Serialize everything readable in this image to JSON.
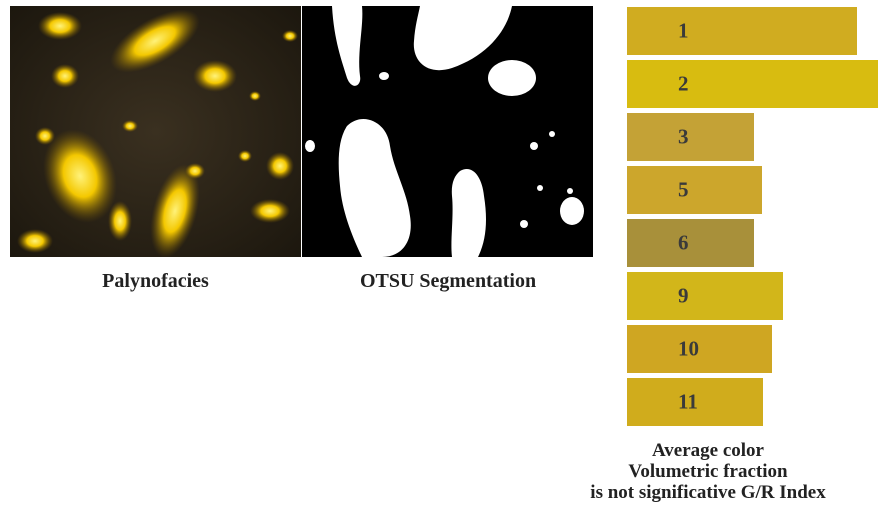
{
  "panels": {
    "palynofacies_caption": "Palynofacies",
    "otsu_caption": "OTSU Segmentation"
  },
  "color_bars": [
    {
      "label": "1",
      "color": "#d0ac20",
      "fraction": 0.917
    },
    {
      "label": "2",
      "color": "#d8bc10",
      "fraction": 1.0
    },
    {
      "label": "3",
      "color": "#c4a236",
      "fraction": 0.51
    },
    {
      "label": "5",
      "color": "#cca62c",
      "fraction": 0.54
    },
    {
      "label": "6",
      "color": "#a8903a",
      "fraction": 0.51
    },
    {
      "label": "9",
      "color": "#d2b61a",
      "fraction": 0.625
    },
    {
      "label": "10",
      "color": "#cfa622",
      "fraction": 0.58
    },
    {
      "label": "11",
      "color": "#d0ac1c",
      "fraction": 0.547
    }
  ],
  "bottom_caption": {
    "line1": "Average color",
    "line2": "Volumetric fraction",
    "line3": "is not significative G/R Index"
  }
}
